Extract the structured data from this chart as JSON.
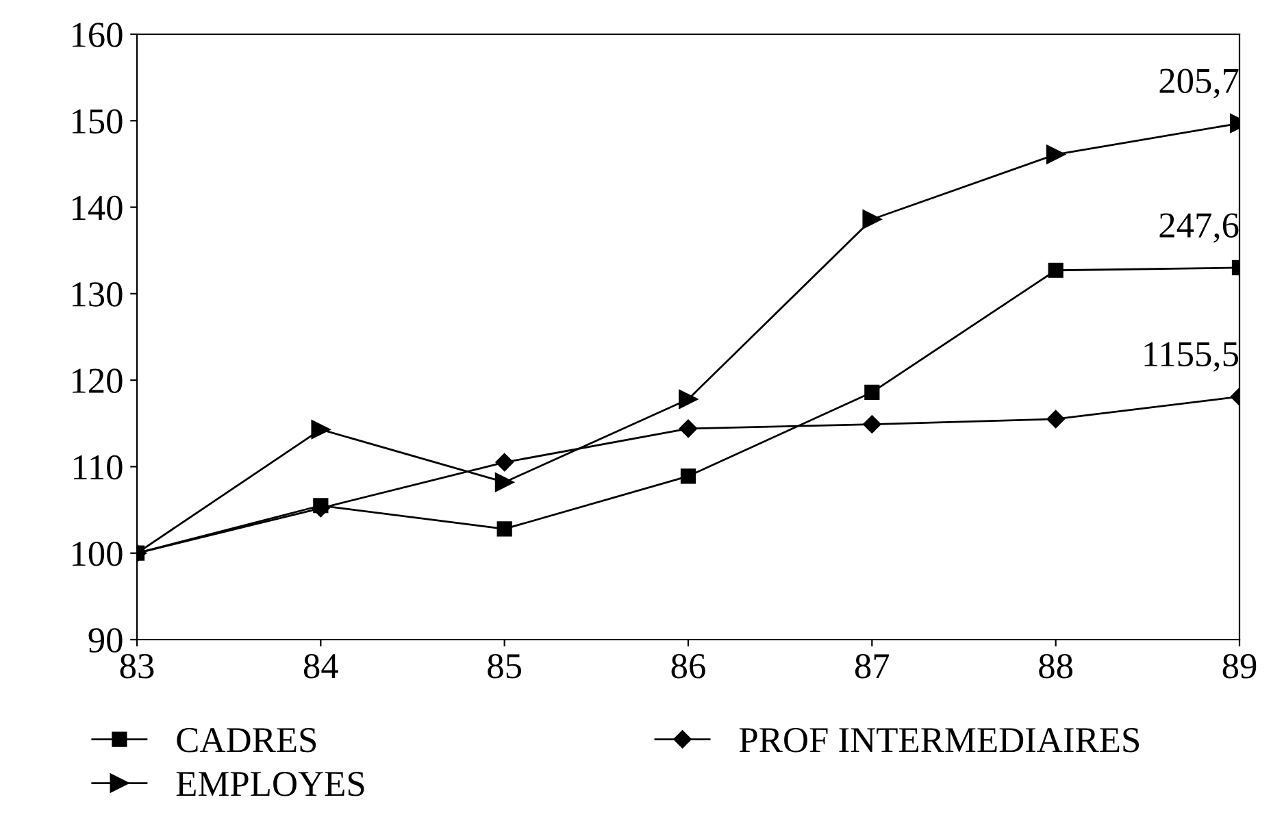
{
  "chart_data": {
    "type": "line",
    "x": [
      83,
      84,
      85,
      86,
      87,
      88,
      89
    ],
    "xlim": [
      83,
      89
    ],
    "xticks": [
      83,
      84,
      85,
      86,
      87,
      88,
      89
    ],
    "ylim": [
      90,
      160
    ],
    "yticks": [
      90,
      100,
      110,
      120,
      130,
      140,
      150,
      160
    ],
    "grid": false,
    "legend": "bottom",
    "line_style": "solid",
    "series": [
      {
        "name": "PROF INTERMEDIAIRES",
        "color": "#000000",
        "marker": "diamond",
        "values": [
          100,
          105.2,
          110.5,
          114.4,
          114.9,
          115.5,
          118.1
        ]
      },
      {
        "name": "CADRES",
        "color": "#000000",
        "marker": "square",
        "values": [
          100,
          105.5,
          102.8,
          108.9,
          118.6,
          132.7,
          133
        ]
      },
      {
        "name": "EMPLOYES",
        "color": "#000000",
        "marker": "triangle",
        "values": [
          100,
          114.3,
          108.2,
          117.8,
          138.6,
          146.1,
          149.7
        ]
      }
    ],
    "annotations": [
      {
        "text": "205,7",
        "y": 149.7
      },
      {
        "text": "247,6",
        "y": 133
      },
      {
        "text": "1155,5",
        "y": 118.1
      }
    ]
  }
}
